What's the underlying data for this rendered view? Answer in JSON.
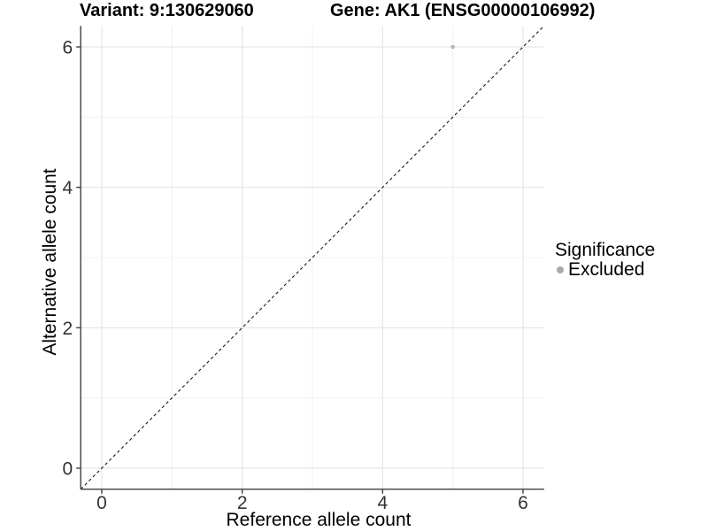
{
  "titles": {
    "variant": "Variant: 9:130629060",
    "gene": "Gene: AK1 (ENSG00000106992)"
  },
  "legend": {
    "title": "Significance",
    "items": [
      {
        "label": "Excluded",
        "color": "#a9a9a9"
      }
    ]
  },
  "colors": {
    "background": "#ffffff",
    "grid_major": "#e5e5e5",
    "grid_minor": "#f0f0f0",
    "axis_line": "#3f3f3f",
    "tick_mark": "#3f3f3f",
    "tick_label": "#333333",
    "reference_line": "#1a1a1a",
    "point": "#b5b5b5"
  },
  "chart_data": {
    "type": "scatter",
    "title": "Variant: 9:130629060   Gene: AK1 (ENSG00000106992)",
    "xlabel": "Reference allele count",
    "ylabel": "Alternative allele count",
    "xlim": [
      -0.3,
      6.3
    ],
    "ylim": [
      -0.3,
      6.3
    ],
    "x_ticks": [
      0,
      2,
      4,
      6
    ],
    "y_ticks": [
      0,
      2,
      4,
      6
    ],
    "x_minor_ticks": [
      1,
      3,
      5
    ],
    "y_minor_ticks": [
      1,
      3,
      5
    ],
    "grid": true,
    "legend_position": "right",
    "legend_title": "Significance",
    "series": [
      {
        "name": "Excluded",
        "points": [
          {
            "x": 5,
            "y": 6
          }
        ],
        "color": "#b5b5b5",
        "point_radius": 2.3
      }
    ],
    "reference_line": {
      "type": "identity",
      "slope": 1,
      "intercept": 0,
      "style": "dashed",
      "color": "#1a1a1a"
    }
  }
}
